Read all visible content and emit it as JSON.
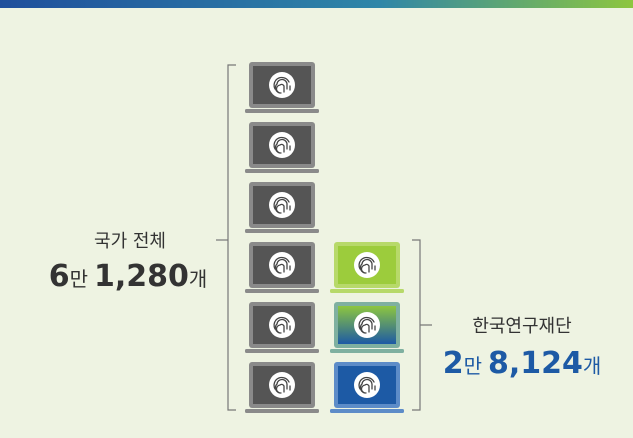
{
  "left": {
    "label": "국가 전체",
    "amount": [
      "6",
      "만",
      "1,280",
      "개"
    ]
  },
  "right": {
    "label": "한국연구재단",
    "amount": [
      "2",
      "만",
      "8,124",
      "개"
    ]
  }
}
